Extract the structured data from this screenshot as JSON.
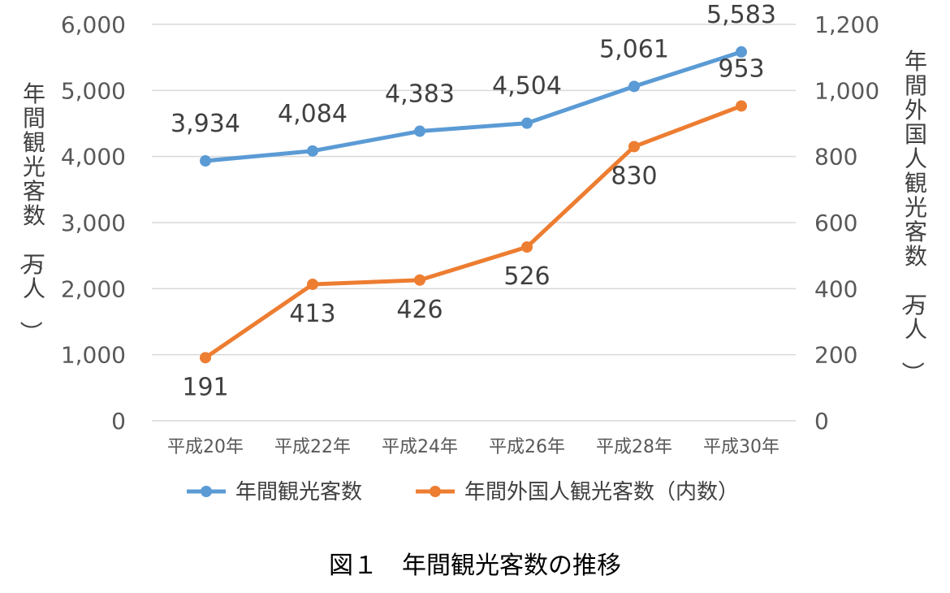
{
  "chart_data": {
    "type": "line",
    "categories": [
      "平成20年",
      "平成22年",
      "平成24年",
      "平成26年",
      "平成28年",
      "平成30年"
    ],
    "series": [
      {
        "name": "年間観光客数",
        "axis": "left",
        "color": "#5B9BD5",
        "values": [
          3934,
          4084,
          4383,
          4504,
          5061,
          5583
        ],
        "labels": [
          "3,934",
          "4,084",
          "4,383",
          "4,504",
          "5,061",
          "5,583"
        ]
      },
      {
        "name": "年間外国人観光客数（内数）",
        "axis": "right",
        "color": "#ED7D31",
        "values": [
          191,
          413,
          426,
          526,
          830,
          953
        ],
        "labels": [
          "191",
          "413",
          "426",
          "526",
          "830",
          "953"
        ]
      }
    ],
    "ylim_left": [
      0,
      6000
    ],
    "yticks_left": [
      "0",
      "1,000",
      "2,000",
      "3,000",
      "4,000",
      "5,000",
      "6,000"
    ],
    "ylim_right": [
      0,
      1200
    ],
    "yticks_right": [
      "0",
      "200",
      "400",
      "600",
      "800",
      "1,000",
      "1,200"
    ],
    "ylabel_left": "年間観光客数（万人）",
    "ylabel_right": "年間外国人観光客数（万人）",
    "grid": true,
    "legend_position": "bottom",
    "caption": "図１　年間観光客数の推移"
  }
}
